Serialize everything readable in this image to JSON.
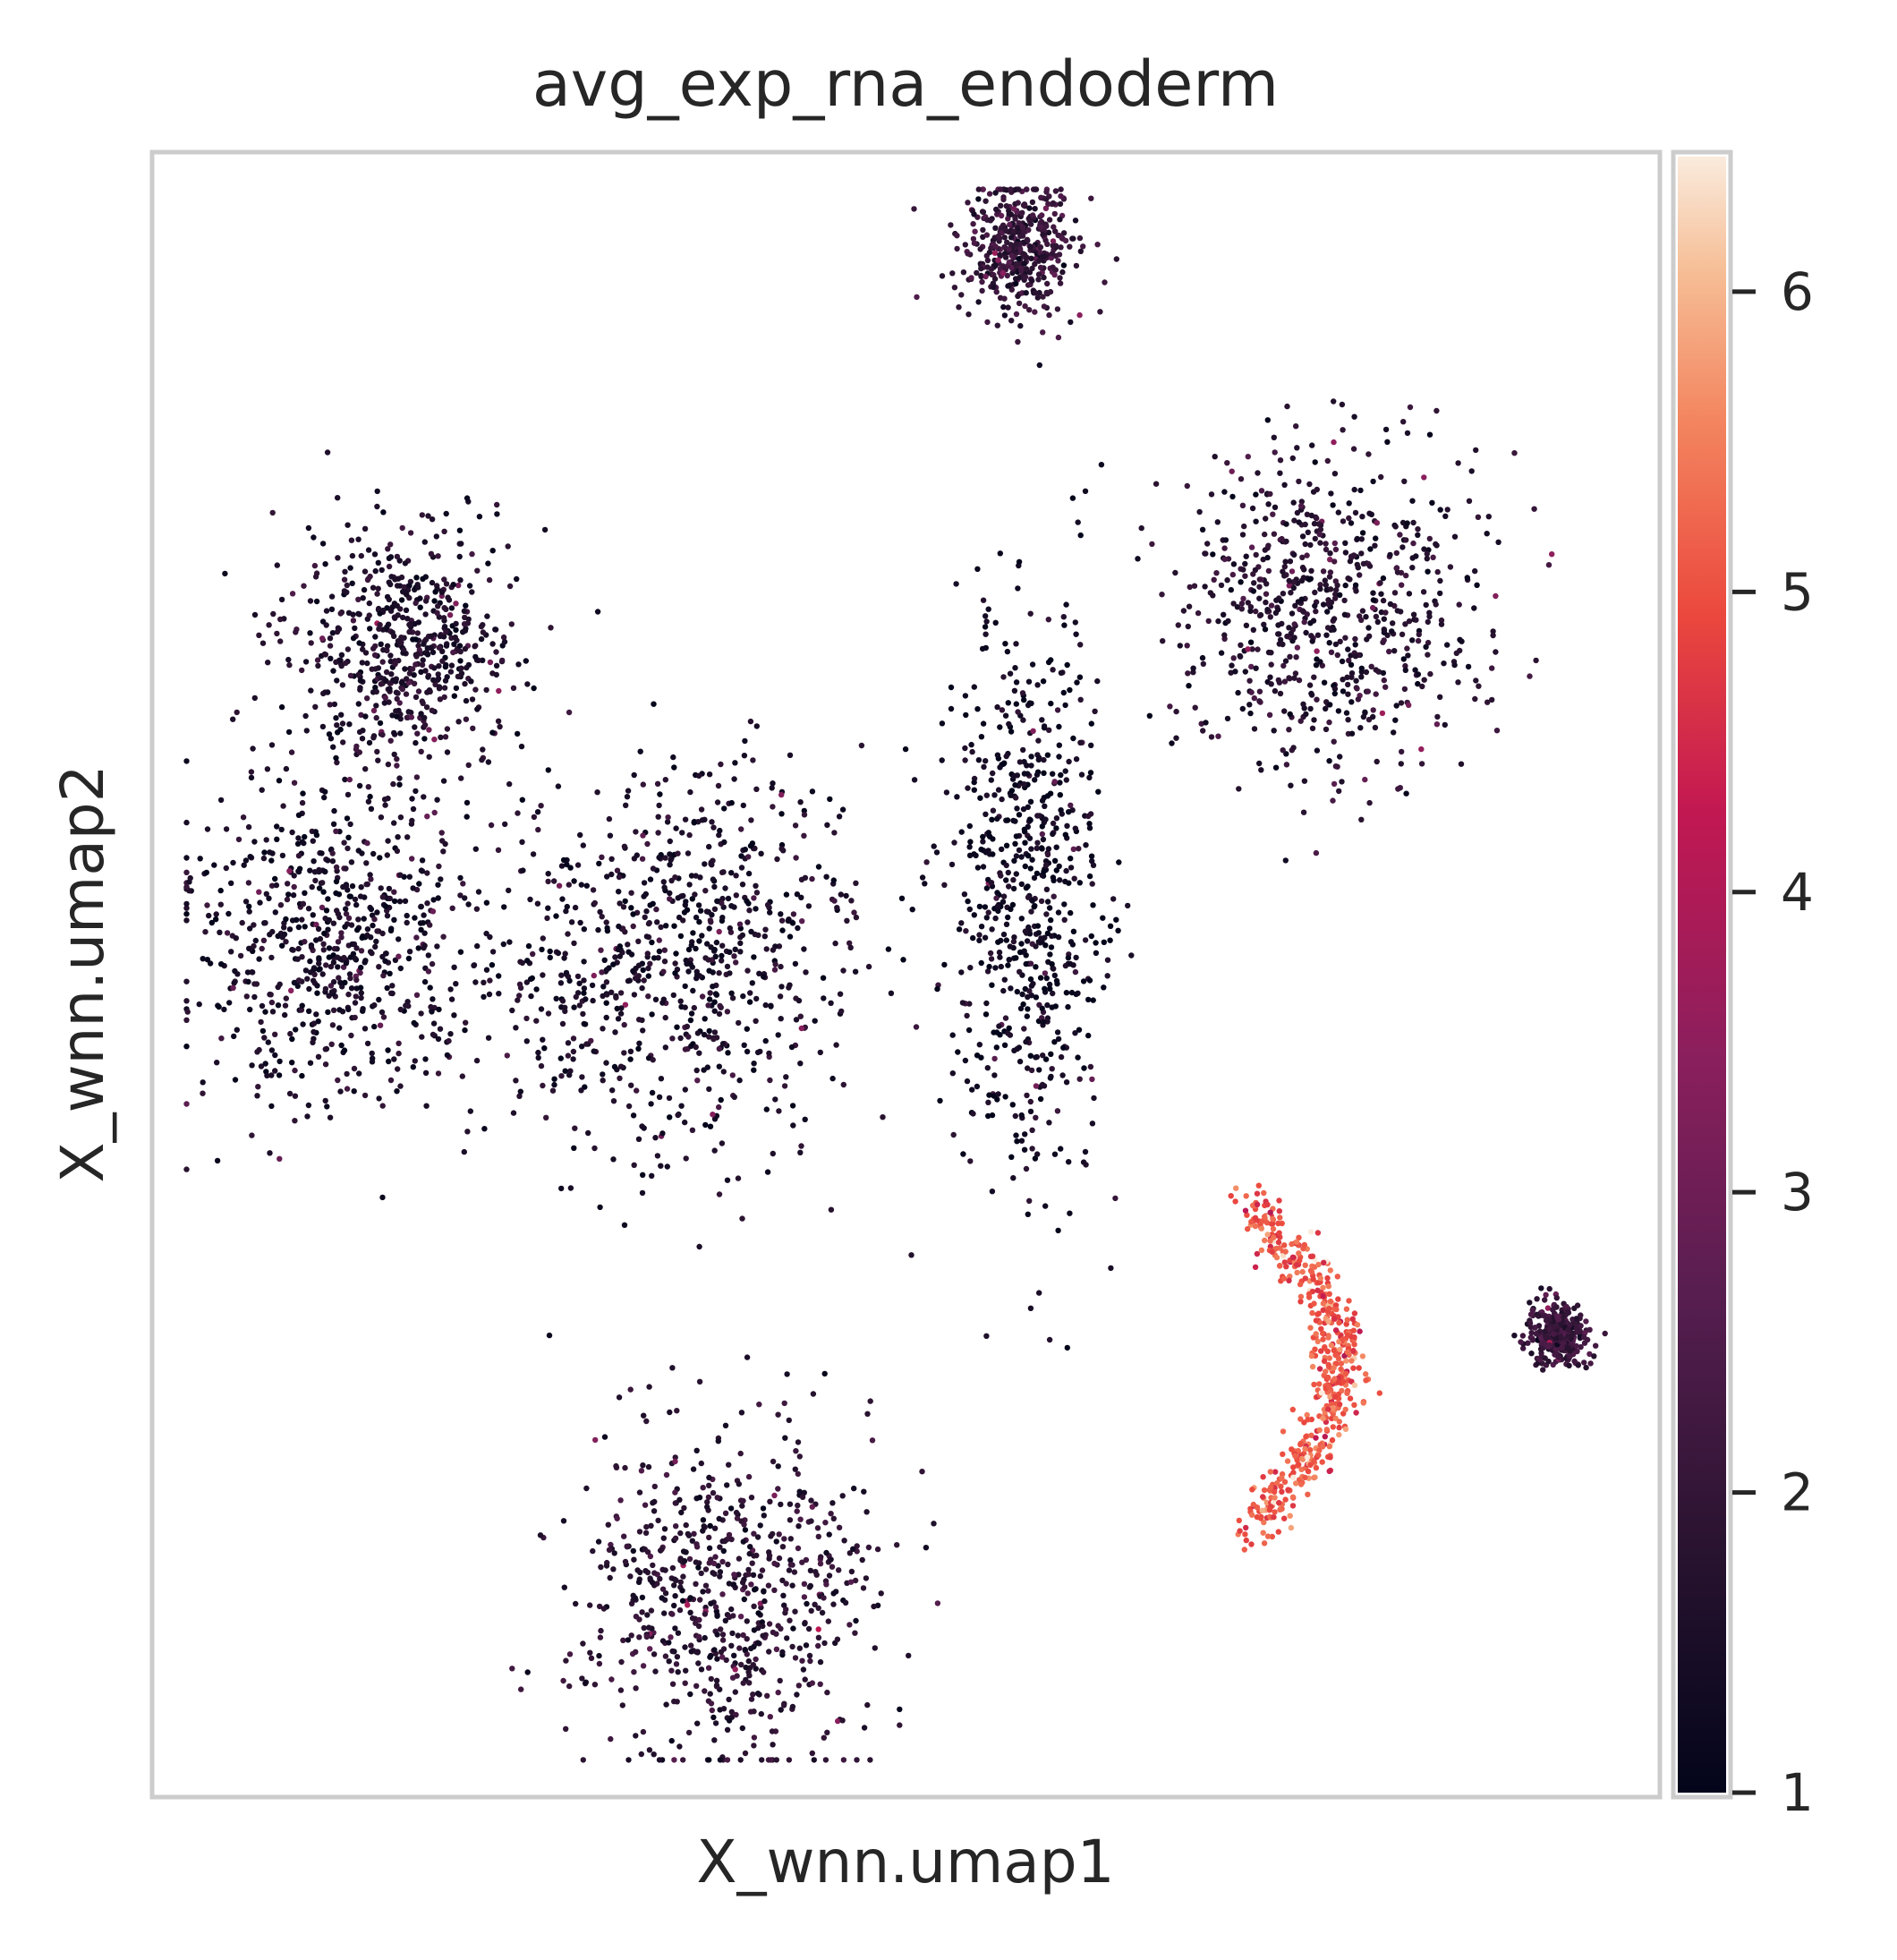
{
  "chart_data": {
    "type": "scatter",
    "title": "avg_exp_rna_endoderm",
    "xlabel": "X_wnn.umap1",
    "ylabel": "X_wnn.umap2",
    "xticks": "none",
    "yticks": "none",
    "grid": false,
    "colormap": "rocket",
    "colorbar": {
      "min": 1,
      "max": 6.45,
      "ticks": [
        1,
        2,
        3,
        4,
        5,
        6
      ],
      "tick_labels": [
        "1",
        "2",
        "3",
        "4",
        "5",
        "6"
      ]
    },
    "colors": {
      "frame": "#cccccc",
      "low": "#03051a",
      "mid": "#a11a5b",
      "high": "#faebdd",
      "hotspot": "#ec6a48"
    },
    "clusters": [
      {
        "name": "top isolated cluster",
        "cx": 0.575,
        "cy": 0.945,
        "spread": 0.02,
        "expression": 2.0
      },
      {
        "name": "upper-left round cluster",
        "cx": 0.165,
        "cy": 0.7,
        "spread": 0.038,
        "expression": 1.6
      },
      {
        "name": "left large mass",
        "cx": 0.12,
        "cy": 0.52,
        "spread": 0.05,
        "expression": 1.5
      },
      {
        "name": "central mass",
        "cx": 0.35,
        "cy": 0.51,
        "spread": 0.06,
        "expression": 1.5
      },
      {
        "name": "central vertical lobe",
        "cx": 0.58,
        "cy": 0.55,
        "spread": 0.045,
        "expression": 1.3
      },
      {
        "name": "upper-right branching cluster",
        "cx": 0.78,
        "cy": 0.72,
        "spread": 0.05,
        "expression": 1.7
      },
      {
        "name": "right elongated endoderm arc",
        "cx": 0.75,
        "cy": 0.26,
        "spread": 0.03,
        "expression": 5.1
      },
      {
        "name": "bottom cluster",
        "cx": 0.38,
        "cy": 0.12,
        "spread": 0.05,
        "expression": 1.8
      },
      {
        "name": "far-right small cluster",
        "cx": 0.935,
        "cy": 0.28,
        "spread": 0.01,
        "expression": 2.2
      }
    ]
  }
}
